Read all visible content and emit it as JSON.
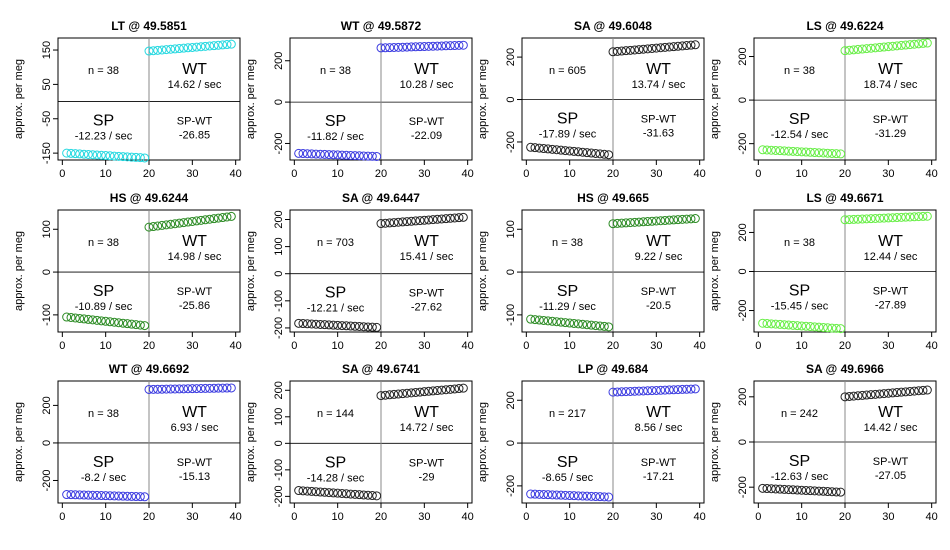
{
  "chart_data": [
    {
      "type": "scatter",
      "title": "LT @ 49.5851",
      "ylabel": "approx. per meg",
      "ylim": [
        -170,
        185
      ],
      "yticks": [
        -150,
        -50,
        50,
        150
      ],
      "xlim": [
        -1,
        41
      ],
      "xticks": [
        0,
        10,
        20,
        30,
        40
      ],
      "color": "#22d8e0",
      "n": "n = 38",
      "wt_label": "WT",
      "wt_rate": "14.62 / sec",
      "sp_label": "SP",
      "sp_rate": "-12.23 / sec",
      "diff_label": "SP-WT",
      "diff_value": "-26.85",
      "sp_start": -150,
      "sp_end": -164,
      "wt_start": 147,
      "wt_end": 167
    },
    {
      "type": "scatter",
      "title": "WT @ 49.5872",
      "ylabel": "approx. per meg",
      "ylim": [
        -280,
        310
      ],
      "yticks": [
        -200,
        0,
        200
      ],
      "xlim": [
        -1,
        41
      ],
      "xticks": [
        0,
        10,
        20,
        30,
        40
      ],
      "color": "#3a3ae0",
      "n": "n = 38",
      "wt_label": "WT",
      "wt_rate": "10.28 / sec",
      "sp_label": "SP",
      "sp_rate": "-11.82 / sec",
      "diff_label": "SP-WT",
      "diff_value": "-22.09",
      "sp_start": -248,
      "sp_end": -263,
      "wt_start": 262,
      "wt_end": 275
    },
    {
      "type": "scatter",
      "title": "SA @ 49.6048",
      "ylabel": "approx. per meg",
      "ylim": [
        -285,
        290
      ],
      "yticks": [
        -200,
        0,
        200
      ],
      "xlim": [
        -1,
        41
      ],
      "xticks": [
        0,
        10,
        20,
        30,
        40
      ],
      "color": "#222222",
      "n": "n = 605",
      "wt_label": "WT",
      "wt_rate": "13.74 / sec",
      "sp_label": "SP",
      "sp_rate": "-17.89 / sec",
      "diff_label": "SP-WT",
      "diff_value": "-31.63",
      "sp_start": -225,
      "sp_end": -260,
      "wt_start": 225,
      "wt_end": 258
    },
    {
      "type": "scatter",
      "title": "LS @ 49.6224",
      "ylabel": "approx. per meg",
      "ylim": [
        -275,
        285
      ],
      "yticks": [
        -200,
        0,
        200
      ],
      "xlim": [
        -1,
        41
      ],
      "xticks": [
        0,
        10,
        20,
        30,
        40
      ],
      "color": "#66ee44",
      "n": "n = 38",
      "wt_label": "WT",
      "wt_rate": "18.74 / sec",
      "sp_label": "SP",
      "sp_rate": "-12.54 / sec",
      "diff_label": "SP-WT",
      "diff_value": "-31.29",
      "sp_start": -228,
      "sp_end": -247,
      "wt_start": 227,
      "wt_end": 262
    },
    {
      "type": "scatter",
      "title": "HS @ 49.6244",
      "ylabel": "approx. per meg",
      "ylim": [
        -140,
        145
      ],
      "yticks": [
        -100,
        0,
        100
      ],
      "xlim": [
        -1,
        41
      ],
      "xticks": [
        0,
        10,
        20,
        30,
        40
      ],
      "color": "#2a8a22",
      "n": "n = 38",
      "wt_label": "WT",
      "wt_rate": "14.98 / sec",
      "sp_label": "SP",
      "sp_rate": "-10.89 / sec",
      "diff_label": "SP-WT",
      "diff_value": "-25.86",
      "sp_start": -105,
      "sp_end": -125,
      "wt_start": 105,
      "wt_end": 130
    },
    {
      "type": "scatter",
      "title": "SA @ 49.6447",
      "ylabel": "approx. per meg",
      "ylim": [
        -215,
        235
      ],
      "yticks": [
        -200,
        -100,
        0,
        100,
        200
      ],
      "xlim": [
        -1,
        41
      ],
      "xticks": [
        0,
        10,
        20,
        30,
        40
      ],
      "color": "#222222",
      "n": "n = 703",
      "wt_label": "WT",
      "wt_rate": "15.41 / sec",
      "sp_label": "SP",
      "sp_rate": "-12.21 / sec",
      "diff_label": "SP-WT",
      "diff_value": "-27.62",
      "sp_start": -183,
      "sp_end": -198,
      "wt_start": 185,
      "wt_end": 208
    },
    {
      "type": "scatter",
      "title": "HS @ 49.665",
      "ylabel": "approx. per meg",
      "ylim": [
        -140,
        145
      ],
      "yticks": [
        -100,
        0,
        100
      ],
      "xlim": [
        -1,
        41
      ],
      "xticks": [
        0,
        10,
        20,
        30,
        40
      ],
      "color": "#2a8a22",
      "n": "n = 38",
      "wt_label": "WT",
      "wt_rate": "9.22 / sec",
      "sp_label": "SP",
      "sp_rate": "-11.29 / sec",
      "diff_label": "SP-WT",
      "diff_value": "-20.5",
      "sp_start": -110,
      "sp_end": -128,
      "wt_start": 113,
      "wt_end": 125
    },
    {
      "type": "scatter",
      "title": "LS @ 49.6671",
      "ylabel": "approx. per meg",
      "ylim": [
        -310,
        315
      ],
      "yticks": [
        -200,
        0,
        200
      ],
      "xlim": [
        -1,
        41
      ],
      "xticks": [
        0,
        10,
        20,
        30,
        40
      ],
      "color": "#66ee44",
      "n": "n = 38",
      "wt_label": "WT",
      "wt_rate": "12.44 / sec",
      "sp_label": "SP",
      "sp_rate": "-15.45 / sec",
      "diff_label": "SP-WT",
      "diff_value": "-27.89",
      "sp_start": -265,
      "sp_end": -293,
      "wt_start": 265,
      "wt_end": 283
    },
    {
      "type": "scatter",
      "title": "WT @ 49.6692",
      "ylabel": "approx. per meg",
      "ylim": [
        -320,
        330
      ],
      "yticks": [
        -200,
        0,
        200
      ],
      "xlim": [
        -1,
        41
      ],
      "xticks": [
        0,
        10,
        20,
        30,
        40
      ],
      "color": "#3a3ae0",
      "n": "n = 38",
      "wt_label": "WT",
      "wt_rate": "6.93 / sec",
      "sp_label": "SP",
      "sp_rate": "-8.2 / sec",
      "diff_label": "SP-WT",
      "diff_value": "-15.13",
      "sp_start": -275,
      "sp_end": -287,
      "wt_start": 285,
      "wt_end": 293
    },
    {
      "type": "scatter",
      "title": "SA @ 49.6741",
      "ylabel": "approx. per meg",
      "ylim": [
        -225,
        235
      ],
      "yticks": [
        -200,
        -100,
        0,
        100,
        200
      ],
      "xlim": [
        -1,
        41
      ],
      "xticks": [
        0,
        10,
        20,
        30,
        40
      ],
      "color": "#222222",
      "n": "n = 144",
      "wt_label": "WT",
      "wt_rate": "14.72 / sec",
      "sp_label": "SP",
      "sp_rate": "-14.28 / sec",
      "diff_label": "SP-WT",
      "diff_value": "-29",
      "sp_start": -178,
      "sp_end": -198,
      "wt_start": 180,
      "wt_end": 208
    },
    {
      "type": "scatter",
      "title": "LP @ 49.684",
      "ylabel": "approx. per meg",
      "ylim": [
        -280,
        290
      ],
      "yticks": [
        -200,
        0,
        200
      ],
      "xlim": [
        -1,
        41
      ],
      "xticks": [
        0,
        10,
        20,
        30,
        40
      ],
      "color": "#3a3ae0",
      "n": "n = 217",
      "wt_label": "WT",
      "wt_rate": "8.56 / sec",
      "sp_label": "SP",
      "sp_rate": "-8.65 / sec",
      "diff_label": "SP-WT",
      "diff_value": "-17.21",
      "sp_start": -238,
      "sp_end": -252,
      "wt_start": 238,
      "wt_end": 253
    },
    {
      "type": "scatter",
      "title": "SA @ 49.6966",
      "ylabel": "approx. per meg",
      "ylim": [
        -270,
        270
      ],
      "yticks": [
        -200,
        0,
        200
      ],
      "xlim": [
        -1,
        41
      ],
      "xticks": [
        0,
        10,
        20,
        30,
        40
      ],
      "color": "#222222",
      "n": "n = 242",
      "wt_label": "WT",
      "wt_rate": "14.42 / sec",
      "sp_label": "SP",
      "sp_rate": "-12.63 / sec",
      "diff_label": "SP-WT",
      "diff_value": "-27.05",
      "sp_start": -205,
      "sp_end": -222,
      "wt_start": 200,
      "wt_end": 230
    }
  ]
}
